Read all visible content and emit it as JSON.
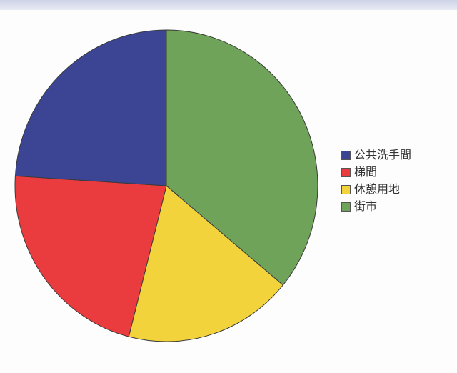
{
  "chart_data": {
    "type": "pie",
    "title": "",
    "legend_position": "right",
    "start_angle_deg": 0,
    "direction": "clockwise",
    "slices": [
      {
        "label": "街市",
        "value": 36,
        "color": "#6fa35a"
      },
      {
        "label": "休憩用地",
        "value": 18,
        "color": "#f2d33c"
      },
      {
        "label": "梯間",
        "value": 22,
        "color": "#ea3c3f"
      },
      {
        "label": "公共洗手間",
        "value": 24,
        "color": "#3c4594"
      }
    ],
    "legend": [
      {
        "label": "公共洗手間",
        "color": "#3c4594"
      },
      {
        "label": "梯間",
        "color": "#ea3c3f"
      },
      {
        "label": "休憩用地",
        "color": "#f2d33c"
      },
      {
        "label": "街市",
        "color": "#6fa35a"
      }
    ]
  }
}
